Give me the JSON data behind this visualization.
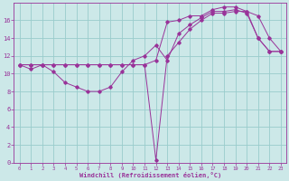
{
  "xlabel": "Windchill (Refroidissement éolien,°C)",
  "background_color": "#cce8e8",
  "grid_color": "#99cccc",
  "line_color": "#993399",
  "xlim": [
    -0.5,
    23.5
  ],
  "ylim": [
    0,
    18
  ],
  "xticks": [
    0,
    1,
    2,
    3,
    4,
    5,
    6,
    7,
    8,
    9,
    10,
    11,
    12,
    13,
    14,
    15,
    16,
    17,
    18,
    19,
    20,
    21,
    22,
    23
  ],
  "yticks": [
    0,
    2,
    4,
    6,
    8,
    10,
    12,
    14,
    16
  ],
  "line1_x": [
    0,
    1,
    2,
    3,
    4,
    5,
    6,
    7,
    8,
    9,
    10,
    11,
    12,
    13,
    14,
    15,
    16,
    17,
    18,
    19,
    20,
    21,
    22,
    23
  ],
  "line1_y": [
    11,
    10.5,
    11,
    10.2,
    9.0,
    8.5,
    8.0,
    8.0,
    8.5,
    10.2,
    11.5,
    12.0,
    13.2,
    11.5,
    14.5,
    15.5,
    16.3,
    17.0,
    17.0,
    17.2,
    16.8,
    14.0,
    12.5,
    12.5
  ],
  "line2_x": [
    0,
    1,
    2,
    3,
    4,
    5,
    6,
    7,
    8,
    9,
    10,
    11,
    12,
    13,
    14,
    15,
    16,
    17,
    18,
    19,
    20,
    21,
    22,
    23
  ],
  "line2_y": [
    11,
    11,
    11,
    11,
    11,
    11,
    11,
    11,
    11,
    11,
    11,
    11,
    11.5,
    15.8,
    16.0,
    16.5,
    16.5,
    17.2,
    17.5,
    17.5,
    17.0,
    14.0,
    12.5,
    12.5
  ],
  "line3_x": [
    0,
    1,
    2,
    3,
    4,
    5,
    6,
    7,
    8,
    9,
    10,
    11,
    12,
    13,
    14,
    15,
    16,
    17,
    18,
    19,
    20,
    21,
    22,
    23
  ],
  "line3_y": [
    11,
    11,
    11,
    11,
    11,
    11,
    11,
    11,
    11,
    11,
    11,
    11,
    0.3,
    12.0,
    13.5,
    15.0,
    16.0,
    16.8,
    16.8,
    17.0,
    17.0,
    16.5,
    14.0,
    12.5
  ]
}
